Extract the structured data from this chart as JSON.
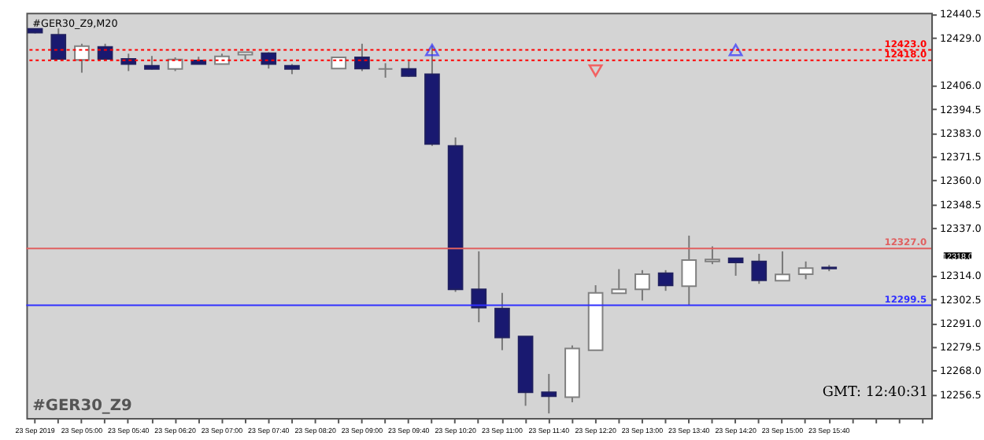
{
  "chart_data": {
    "type": "candlestick",
    "title": "#GER30_Z9,M20",
    "categories": [
      "23 Sep 2019",
      null,
      "23 Sep 05:00",
      null,
      "23 Sep 05:40",
      null,
      "23 Sep 06:20",
      null,
      "23 Sep 07:00",
      null,
      "23 Sep 07:40",
      null,
      "23 Sep 08:20",
      null,
      "23 Sep 09:00",
      null,
      "23 Sep 09:40",
      null,
      "23 Sep 10:20",
      null,
      "23 Sep 11:00",
      null,
      "23 Sep 11:40",
      null,
      "23 Sep 12:20",
      null,
      "23 Sep 13:00",
      null,
      "23 Sep 13:40",
      null,
      "23 Sep 14:20",
      null,
      "23 Sep 15:00",
      null,
      "23 Sep 15:40",
      null,
      null,
      null,
      null
    ],
    "ohlc": [
      [
        12433.2,
        12433.5,
        12431.0,
        12431.4
      ],
      [
        12430.4,
        12433.4,
        12418.5,
        12418.7
      ],
      [
        12418.2,
        12426.0,
        12412.0,
        12424.8
      ],
      [
        12424.5,
        12426.0,
        12418.5,
        12418.7
      ],
      [
        12418.7,
        12421.2,
        12412.8,
        12416.2
      ],
      [
        12415.3,
        12420.1,
        12413.5,
        12413.8
      ],
      [
        12413.8,
        12419.4,
        12412.8,
        12418.4
      ],
      [
        12417.9,
        12419.7,
        12416.0,
        12416.2
      ],
      [
        12416.2,
        12421.2,
        12416.0,
        12419.9
      ],
      [
        12420.7,
        12422.0,
        12418.2,
        12421.9
      ],
      [
        12421.4,
        12421.9,
        12414.0,
        12416.2
      ],
      [
        12415.3,
        12416.2,
        12411.3,
        12413.8
      ],
      null,
      [
        12414.0,
        12419.4,
        12414.0,
        12419.4
      ],
      [
        12419.4,
        12426.0,
        12412.8,
        12414.0
      ],
      [
        12413.8,
        12416.6,
        12409.6,
        12413.8
      ],
      [
        12413.8,
        12417.5,
        12410.0,
        12410.4
      ],
      [
        12411.3,
        12425.1,
        12376.6,
        12377.5
      ],
      [
        12376.6,
        12380.7,
        12306.0,
        12307.2
      ],
      [
        12307.2,
        12325.6,
        12291.3,
        12298.4
      ],
      [
        12297.9,
        12305.5,
        12277.8,
        12283.9
      ],
      [
        12284.4,
        12284.4,
        12250.9,
        12257.4
      ],
      [
        12257.4,
        12266.3,
        12247.2,
        12255.5
      ],
      [
        12255.1,
        12280.1,
        12252.6,
        12278.6
      ],
      [
        12277.8,
        12309.2,
        12277.8,
        12305.5
      ],
      [
        12305.3,
        12317.0,
        12305.3,
        12307.2
      ],
      [
        12307.2,
        12316.5,
        12301.8,
        12314.5
      ],
      [
        12315.0,
        12316.5,
        12306.5,
        12309.1
      ],
      [
        12308.7,
        12333.2,
        12299.4,
        12321.4
      ],
      [
        12320.7,
        12328.0,
        12319.4,
        12321.7
      ],
      [
        12322.2,
        12322.2,
        12313.8,
        12320.2
      ],
      [
        12320.7,
        12324.4,
        12309.9,
        12311.6
      ],
      [
        12311.4,
        12325.6,
        12311.4,
        12314.4
      ],
      [
        12314.5,
        12320.7,
        12312.1,
        12317.5
      ],
      [
        12317.8,
        12319.0,
        12316.0,
        12317.3
      ],
      null,
      null,
      null,
      null
    ],
    "series": [
      {
        "type": "scatter",
        "marker": "triangle",
        "color": "#3333ff",
        "values": [
          null,
          null,
          null,
          null,
          null,
          null,
          null,
          null,
          null,
          null,
          null,
          null,
          null,
          null,
          null,
          null,
          null,
          12423.0,
          null,
          null,
          null,
          null,
          null,
          null,
          null,
          null,
          null,
          null,
          null,
          null,
          12423.0,
          null,
          null,
          null,
          null,
          null,
          null,
          null,
          null
        ]
      },
      {
        "type": "scatter",
        "marker": "triangle_down",
        "color": "#ff3333",
        "values": [
          null,
          null,
          null,
          null,
          null,
          null,
          null,
          null,
          null,
          null,
          null,
          null,
          null,
          null,
          null,
          null,
          null,
          null,
          null,
          null,
          null,
          null,
          null,
          null,
          12413.0,
          null,
          null,
          null,
          null,
          null,
          null,
          null,
          null,
          null,
          null,
          null,
          null,
          null,
          null
        ]
      }
    ],
    "ylim": [
      12245.0,
      12441.0
    ],
    "yticks": [
      12440.5,
      {
        "value": 12429,
        "label": "12429.0"
      },
      {
        "value": 12406,
        "label": "12406.0"
      },
      12394.5,
      {
        "value": 12383,
        "label": "12383.0"
      },
      12371.5,
      {
        "value": 12360,
        "label": "12360.0"
      },
      12348.5,
      {
        "value": 12337,
        "label": "12337.0"
      },
      {
        "value": 12314,
        "label": "12314.0"
      },
      12302.5,
      {
        "value": 12291,
        "label": "12291.0"
      },
      12279.5,
      {
        "value": 12268,
        "label": "12268.0"
      },
      12256.5
    ],
    "ref_lines": [
      {
        "axis": "y",
        "value": 12423.0,
        "label": "12423.0",
        "color": "#ff0000",
        "line_style": "dotted"
      },
      {
        "axis": "y",
        "value": 12418.0,
        "label": "12418.0",
        "color": "#ff0000",
        "line_style": "dotted"
      },
      {
        "axis": "y",
        "value": 12327.0,
        "label": "12327.0",
        "color": "#e06060",
        "line_style": "solid"
      },
      {
        "axis": "y",
        "value": 12299.5,
        "label": "12299.5",
        "color": "#3030ff",
        "line_style": "solid"
      }
    ],
    "annotations": [
      "12318.0",
      "#GER30_Z9",
      "GMT:    12:40:31"
    ],
    "grid": false
  }
}
